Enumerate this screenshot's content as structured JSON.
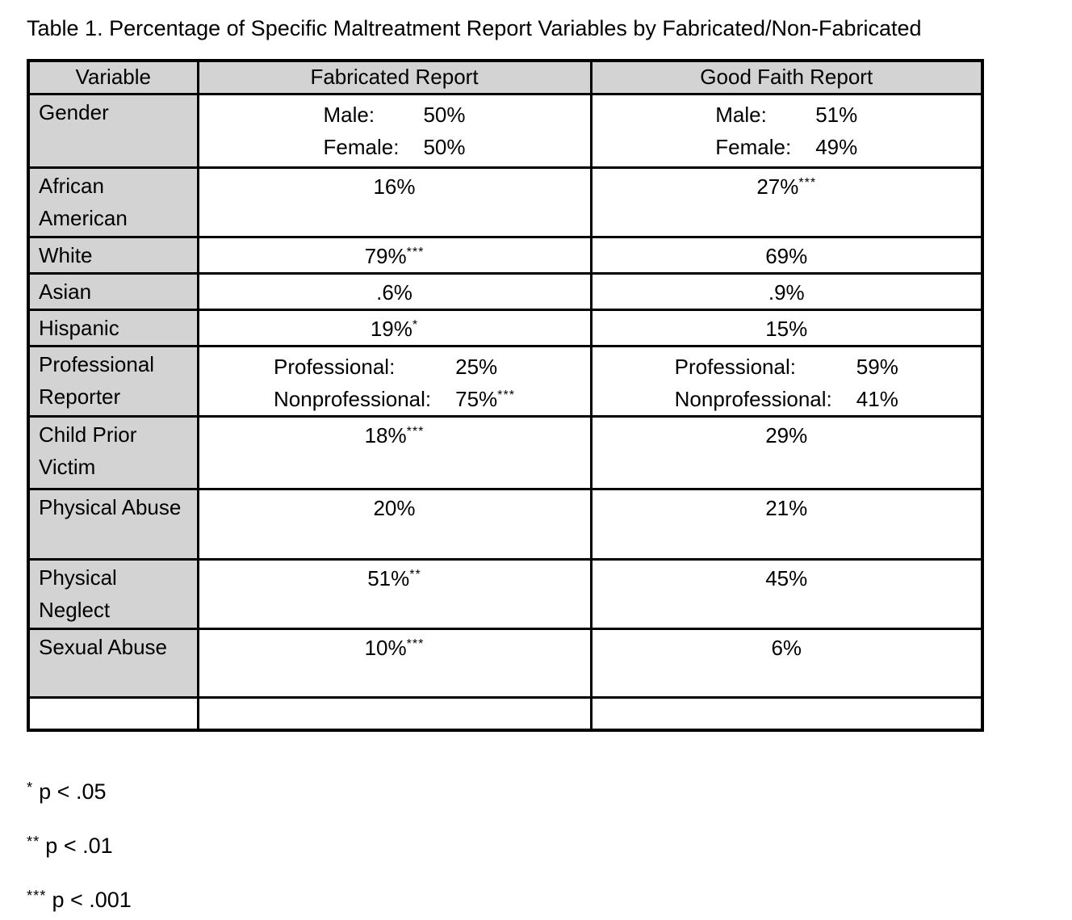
{
  "title": "Table 1. Percentage of Specific Maltreatment Report Variables by Fabricated/Non-Fabricated",
  "table": {
    "columns": [
      "Variable",
      "Fabricated Report",
      "Good Faith Report"
    ],
    "rows": [
      {
        "variable": "Gender",
        "fabricated": {
          "type": "pairs",
          "pairs": [
            {
              "label": "Male:",
              "value": "50%",
              "sig": ""
            },
            {
              "label": "Female:",
              "value": "50%",
              "sig": ""
            }
          ]
        },
        "good_faith": {
          "type": "pairs",
          "pairs": [
            {
              "label": "Male:",
              "value": "51%",
              "sig": ""
            },
            {
              "label": "Female:",
              "value": "49%",
              "sig": ""
            }
          ]
        }
      },
      {
        "variable": "African American",
        "fabricated": {
          "type": "single",
          "value": "16%",
          "sig": ""
        },
        "good_faith": {
          "type": "single",
          "value": "27%",
          "sig": "***"
        }
      },
      {
        "variable": "White",
        "fabricated": {
          "type": "single",
          "value": "79%",
          "sig": "***"
        },
        "good_faith": {
          "type": "single",
          "value": "69%",
          "sig": ""
        }
      },
      {
        "variable": "Asian",
        "fabricated": {
          "type": "single",
          "value": ".6%",
          "sig": ""
        },
        "good_faith": {
          "type": "single",
          "value": ".9%",
          "sig": ""
        }
      },
      {
        "variable": "Hispanic",
        "fabricated": {
          "type": "single",
          "value": "19%",
          "sig": "*"
        },
        "good_faith": {
          "type": "single",
          "value": "15%",
          "sig": ""
        }
      },
      {
        "variable": "Professional Reporter",
        "fabricated": {
          "type": "pairs",
          "pairs": [
            {
              "label": "Professional:",
              "value": "25%",
              "sig": ""
            },
            {
              "label": "Nonprofessional:",
              "value": "75%",
              "sig": "***"
            }
          ]
        },
        "good_faith": {
          "type": "pairs",
          "pairs": [
            {
              "label": "Professional:",
              "value": "59%",
              "sig": ""
            },
            {
              "label": "Nonprofessional:",
              "value": "41%",
              "sig": ""
            }
          ]
        }
      },
      {
        "variable": "Child Prior Victim",
        "fabricated": {
          "type": "single",
          "value": "18%",
          "sig": "***"
        },
        "good_faith": {
          "type": "single",
          "value": "29%",
          "sig": ""
        }
      },
      {
        "variable": "Physical Abuse",
        "fabricated": {
          "type": "single",
          "value": "20%",
          "sig": ""
        },
        "good_faith": {
          "type": "single",
          "value": "21%",
          "sig": ""
        }
      },
      {
        "variable": "Physical Neglect",
        "fabricated": {
          "type": "single",
          "value": "51%",
          "sig": "**"
        },
        "good_faith": {
          "type": "single",
          "value": "45%",
          "sig": ""
        }
      },
      {
        "variable": "Sexual Abuse",
        "fabricated": {
          "type": "single",
          "value": "10%",
          "sig": "***"
        },
        "good_faith": {
          "type": "single",
          "value": "6%",
          "sig": ""
        }
      },
      {
        "variable": "",
        "fabricated": {
          "type": "empty"
        },
        "good_faith": {
          "type": "empty"
        }
      }
    ]
  },
  "footnotes": [
    {
      "marker": "*",
      "text": "p < .05"
    },
    {
      "marker": "**",
      "text": "p < .01"
    },
    {
      "marker": "***",
      "text": "p < .001"
    }
  ],
  "colors": {
    "shaded_cell_bg": "#d3d3d3",
    "cell_bg": "#ffffff",
    "border": "#000000",
    "text": "#000000"
  }
}
